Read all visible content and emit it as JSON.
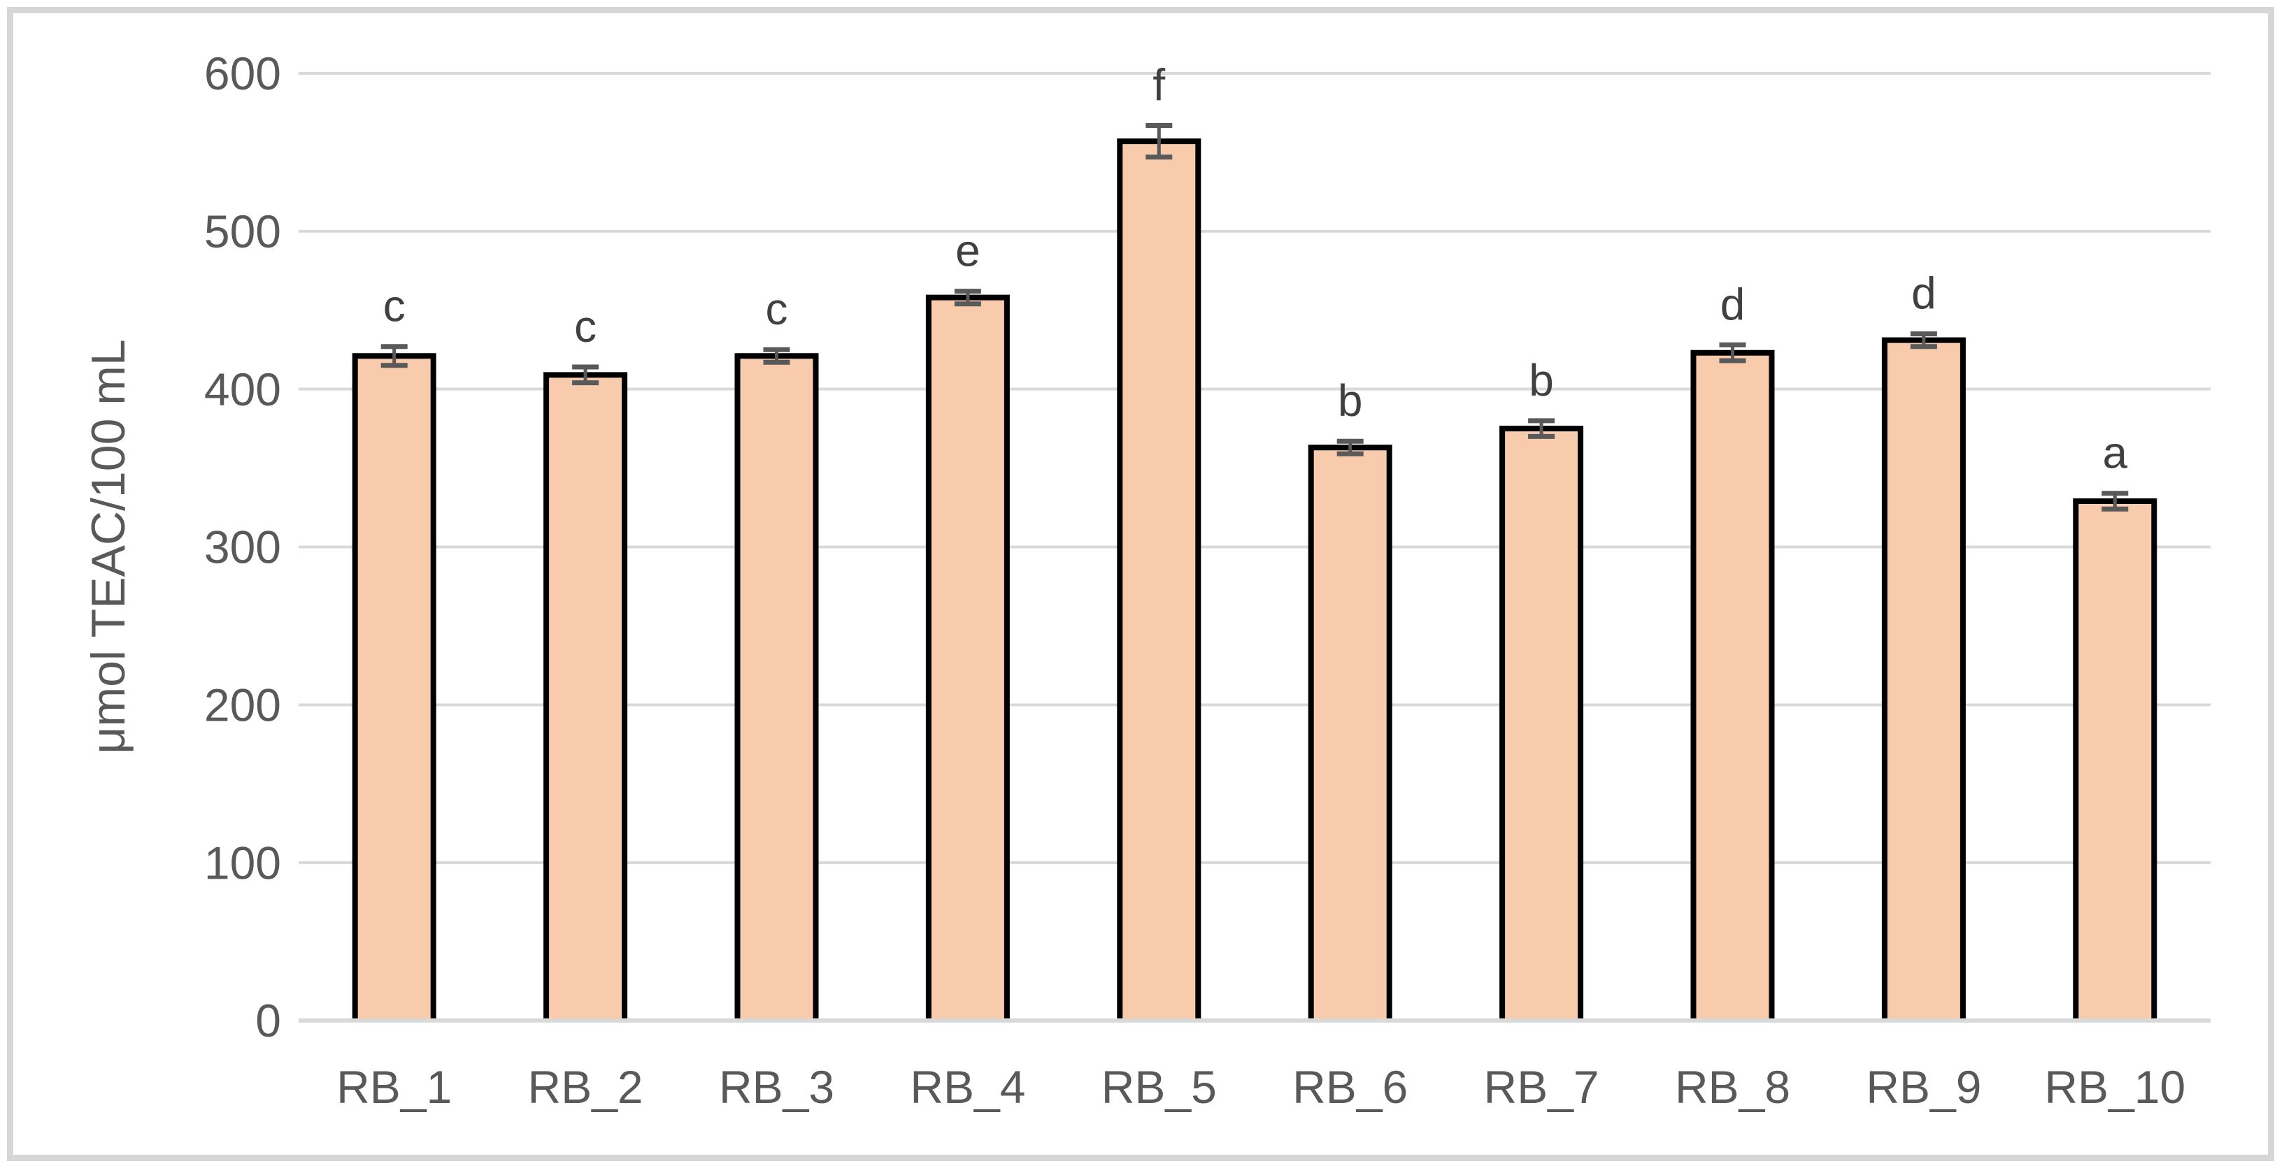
{
  "chart_data": {
    "type": "bar",
    "title": "",
    "xlabel": "",
    "ylabel": "μmol TEAC/100 mL",
    "categories": [
      "RB_1",
      "RB_2",
      "RB_3",
      "RB_4",
      "RB_5",
      "RB_6",
      "RB_7",
      "RB_8",
      "RB_9",
      "RB_10"
    ],
    "values": [
      421,
      409,
      421,
      458,
      557,
      363,
      375,
      423,
      431,
      329
    ],
    "error_bars": [
      6,
      5,
      4,
      4,
      10,
      4,
      5,
      5,
      4,
      5
    ],
    "sig_letters": [
      "c",
      "c",
      "c",
      "e",
      "f",
      "b",
      "b",
      "d",
      "d",
      "a"
    ],
    "ylim": [
      0,
      600
    ],
    "ytick_step": 100,
    "ytick_labels": [
      "0",
      "100",
      "200",
      "300",
      "400",
      "500",
      "600"
    ],
    "grid": true,
    "legend": "none",
    "colors": {
      "bar_fill": "#F8CBAD",
      "bar_border": "#000000",
      "error_bar": "#595959",
      "gridline": "#D9D9D9",
      "tick_label": "#595959",
      "axis_title": "#595959",
      "sig_letter": "#404040",
      "frame_border": "#D6D6D6",
      "background": "#FFFFFF"
    }
  }
}
